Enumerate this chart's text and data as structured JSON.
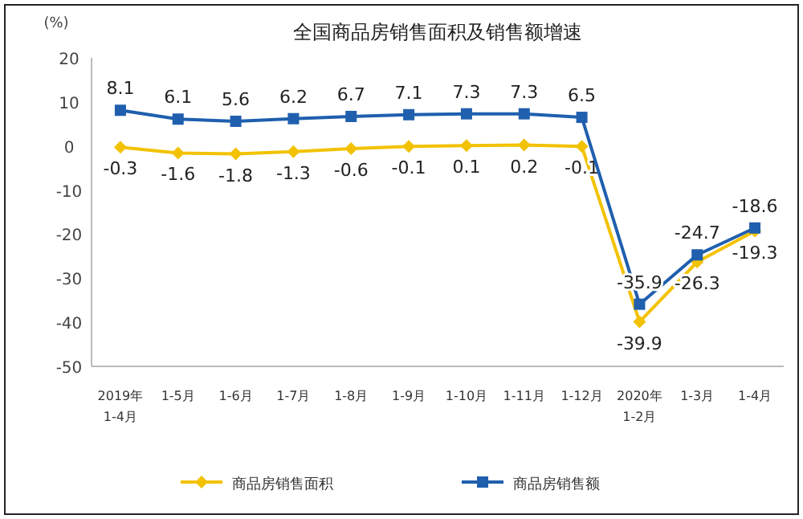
{
  "chart_data": {
    "type": "line",
    "title": "全国商品房销售面积及销售额增速",
    "ylabel": "(%)",
    "categories": [
      "2019年\n1-4月",
      "1-5月",
      "1-6月",
      "1-7月",
      "1-8月",
      "1-9月",
      "1-10月",
      "1-11月",
      "1-12月",
      "2020年\n1-2月",
      "1-3月",
      "1-4月"
    ],
    "series": [
      {
        "name": "商品房销售面积",
        "color": "#f2c200",
        "marker": "diamond",
        "values": [
          -0.3,
          -1.6,
          -1.8,
          -1.3,
          -0.6,
          -0.1,
          0.1,
          0.2,
          -0.1,
          -39.9,
          -26.3,
          -19.3
        ]
      },
      {
        "name": "商品房销售额",
        "color": "#1f5fae",
        "marker": "square",
        "values": [
          8.1,
          6.1,
          5.6,
          6.2,
          6.7,
          7.1,
          7.3,
          7.3,
          6.5,
          -35.9,
          -24.7,
          -18.6
        ]
      }
    ],
    "ylim": [
      -50,
      20
    ],
    "yticks": [
      -50,
      -40,
      -30,
      -20,
      -10,
      0,
      10,
      20
    ],
    "grid": false,
    "legend": "bottom",
    "data_labels": true
  }
}
